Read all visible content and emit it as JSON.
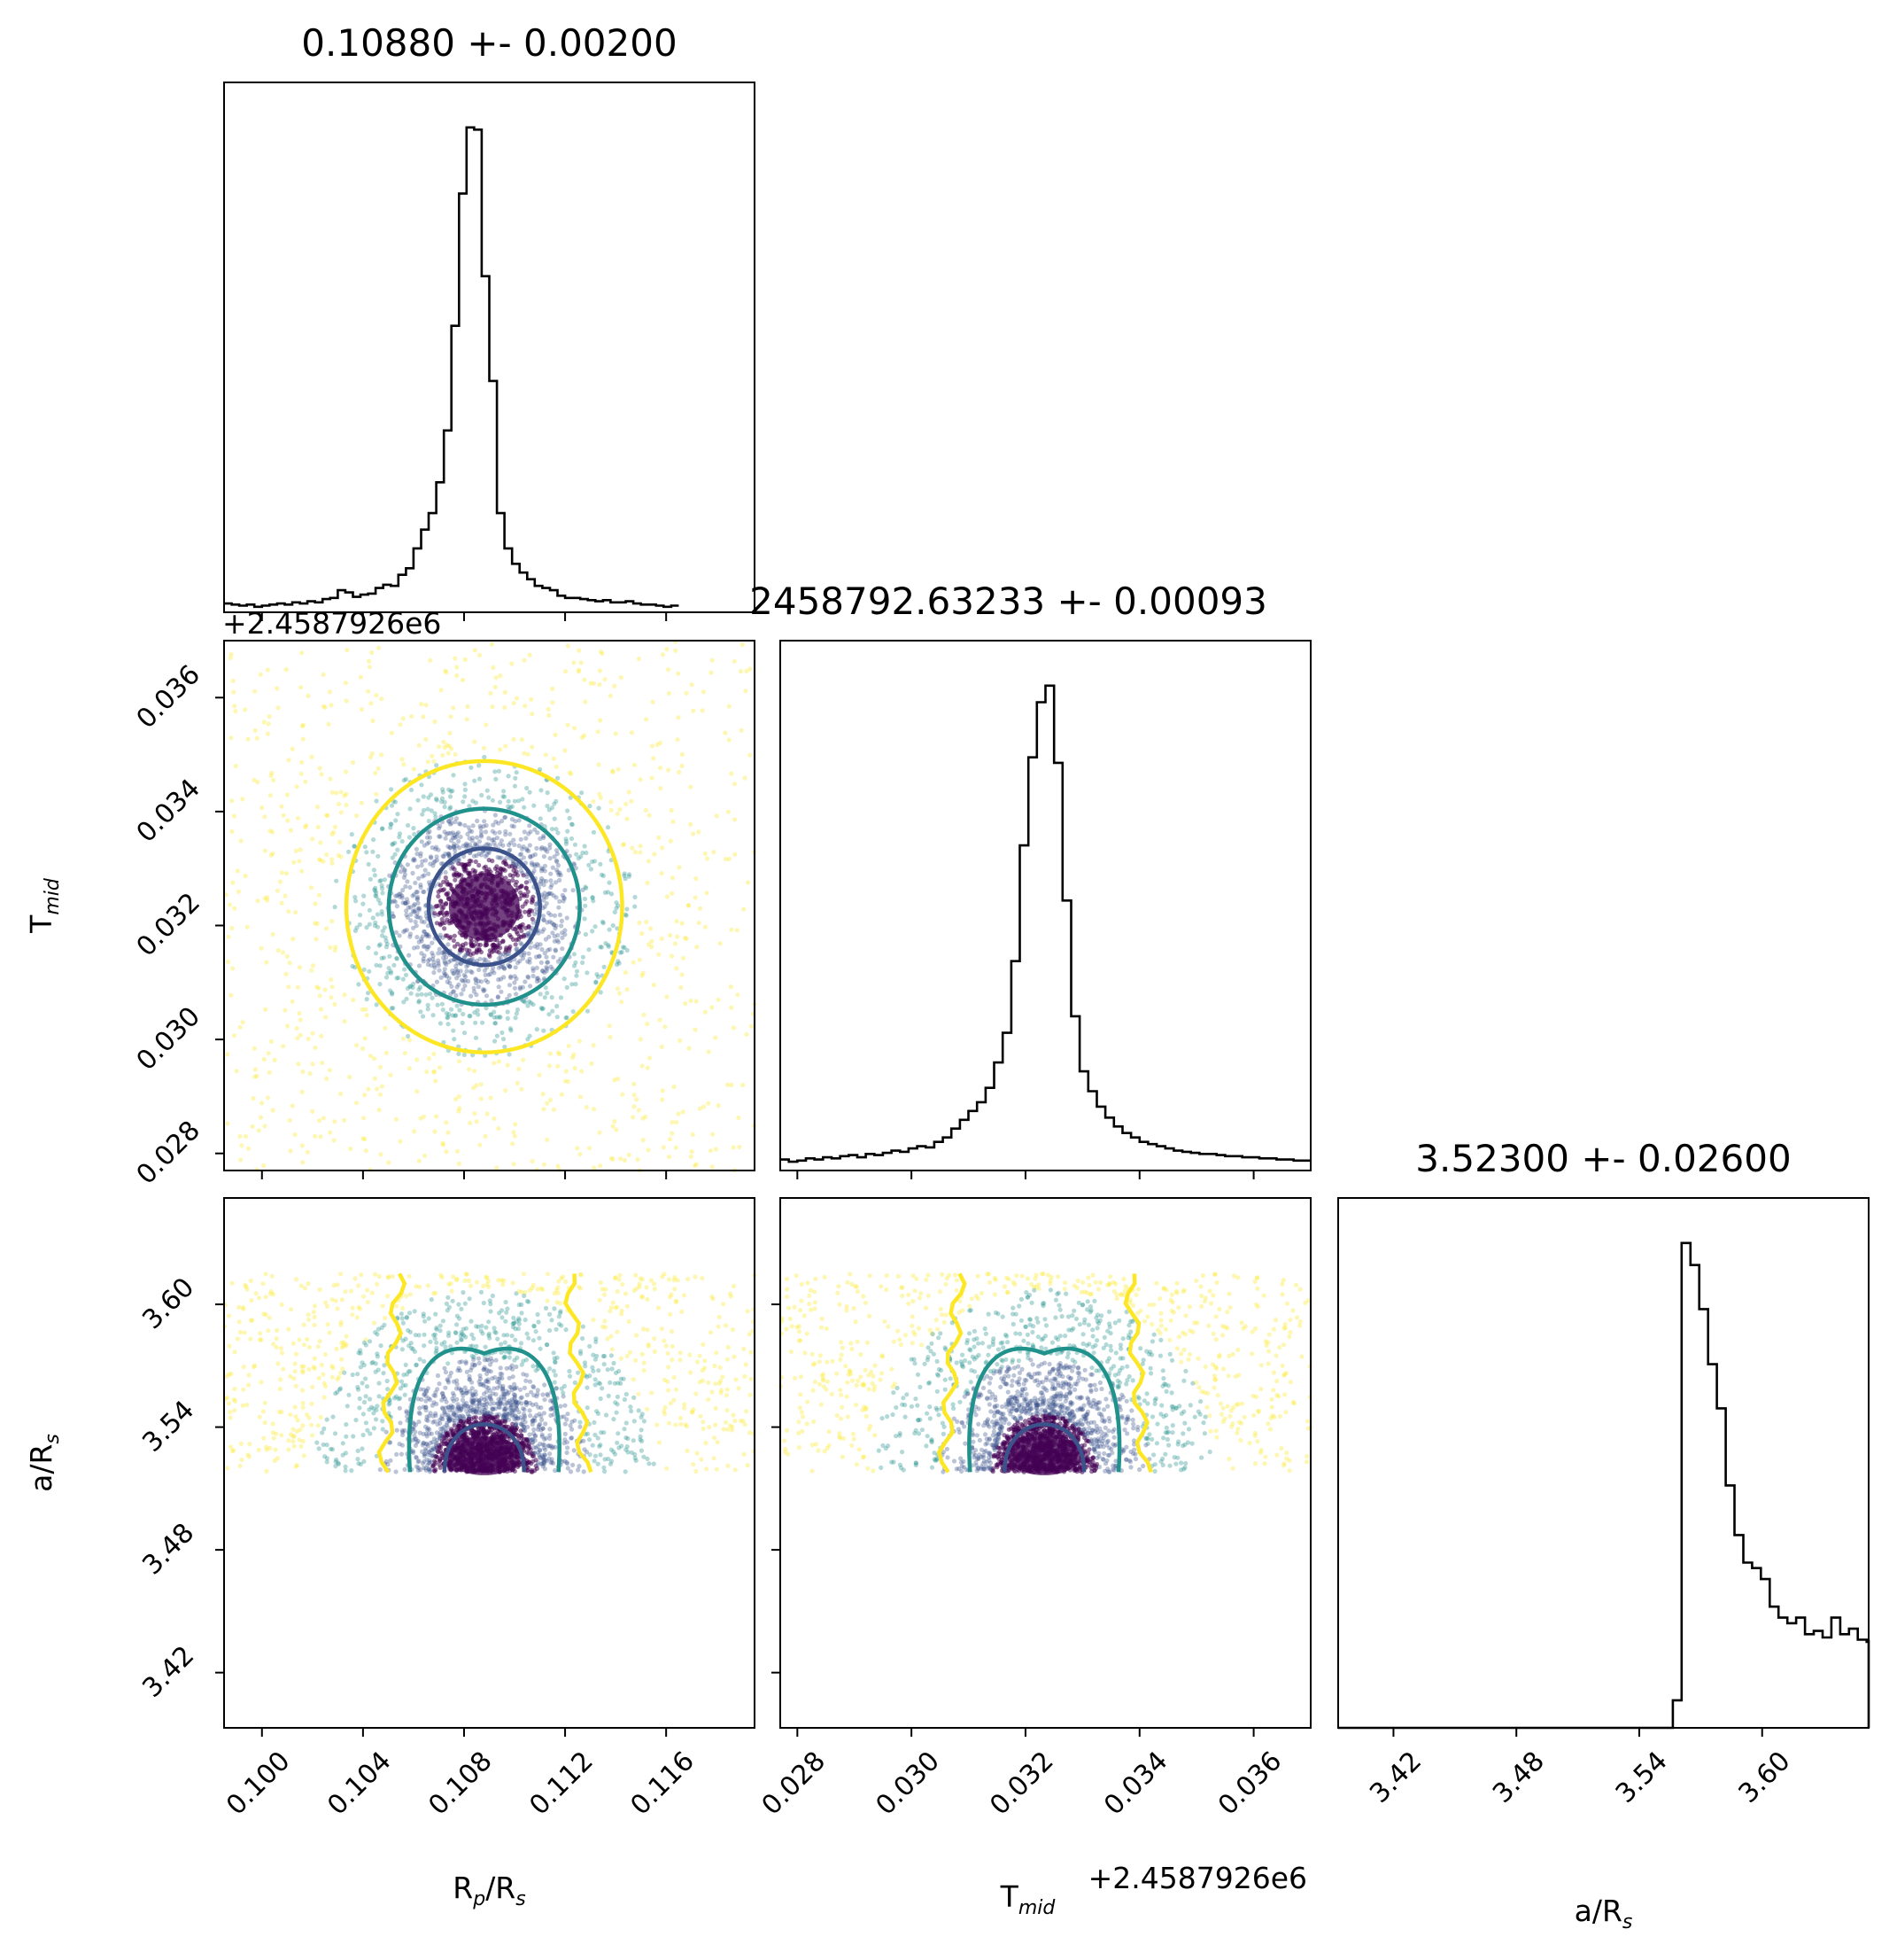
{
  "chart_data": {
    "type": "corner",
    "parameters": [
      {
        "key": "rp",
        "title": "0.10880 +- 0.00200",
        "label_main": "R",
        "label_sub": "p",
        "label_tail": "/R",
        "label_sub2": "s",
        "range": [
          0.0985,
          0.1195
        ],
        "ticks": [
          0.1,
          0.104,
          0.108,
          0.112,
          0.116
        ],
        "tick_labels": [
          "0.100",
          "0.104",
          "0.108",
          "0.112",
          "0.116"
        ],
        "peak": 0.1088,
        "hist": {
          "bin_edges_start": 0.0985,
          "bin_width": 0.0003,
          "counts": [
            8,
            7,
            6,
            7,
            5,
            6,
            7,
            8,
            7,
            9,
            8,
            10,
            9,
            12,
            13,
            20,
            18,
            14,
            16,
            17,
            22,
            25,
            24,
            34,
            40,
            58,
            75,
            90,
            118,
            165,
            260,
            380,
            440,
            438,
            305,
            210,
            90,
            58,
            44,
            36,
            30,
            24,
            22,
            20,
            15,
            13,
            13,
            12,
            11,
            10,
            11,
            9,
            9,
            10,
            8,
            7,
            7,
            6,
            5,
            6
          ]
        }
      },
      {
        "key": "tmid",
        "title": "2458792.63233 +- 0.00093",
        "label_main": "T",
        "label_sub": "mid",
        "offset_text": "+2.4587926e6",
        "range": [
          0.0277,
          0.037
        ],
        "ticks": [
          0.028,
          0.03,
          0.032,
          0.034,
          0.036
        ],
        "tick_labels": [
          "0.028",
          "0.030",
          "0.032",
          "0.034",
          "0.036"
        ],
        "peak": 0.03233,
        "hist": {
          "bin_edges_start": 0.0277,
          "bin_width": 0.00015,
          "counts": [
            10,
            8,
            9,
            11,
            10,
            12,
            11,
            13,
            14,
            12,
            15,
            14,
            16,
            18,
            17,
            20,
            22,
            21,
            26,
            30,
            38,
            46,
            54,
            62,
            75,
            98,
            125,
            190,
            295,
            375,
            425,
            440,
            370,
            245,
            140,
            90,
            72,
            58,
            48,
            40,
            34,
            30,
            26,
            24,
            22,
            20,
            18,
            17,
            16,
            15,
            15,
            14,
            13,
            13,
            12,
            12,
            11,
            11,
            10,
            10,
            9,
            9
          ]
        }
      },
      {
        "key": "ars",
        "title": "3.52300 +- 0.02600",
        "label_main": "a/R",
        "label_sub": "s",
        "range": [
          3.393,
          3.652
        ],
        "ticks": [
          3.42,
          3.48,
          3.54,
          3.6
        ],
        "tick_labels": [
          "3.42",
          "3.48",
          "3.54",
          "3.60"
        ],
        "peak": 3.523,
        "hist": {
          "bin_edges_start": 3.393,
          "bin_width": 0.0043,
          "counts": [
            0,
            0,
            0,
            0,
            0,
            0,
            0,
            0,
            0,
            0,
            0,
            0,
            0,
            0,
            0,
            0,
            0,
            0,
            0,
            0,
            0,
            0,
            0,
            0,
            0,
            0,
            0,
            0,
            0,
            0,
            0,
            0,
            0,
            0,
            0,
            0,
            0,
            0,
            25,
            440,
            420,
            380,
            330,
            290,
            220,
            175,
            150,
            145,
            135,
            110,
            100,
            95,
            100,
            85,
            88,
            82,
            100,
            85,
            90,
            80,
            78,
            80,
            75,
            72,
            70,
            70,
            62,
            0,
            0,
            0
          ]
        }
      }
    ],
    "scatter": {
      "colors": [
        "#fde725",
        "#21918c",
        "#3b528b",
        "#440154"
      ],
      "contour_colors": [
        "#fde725",
        "#21918c",
        "#3b528b"
      ],
      "ars_max": 3.615,
      "ars_min": 3.518
    }
  }
}
